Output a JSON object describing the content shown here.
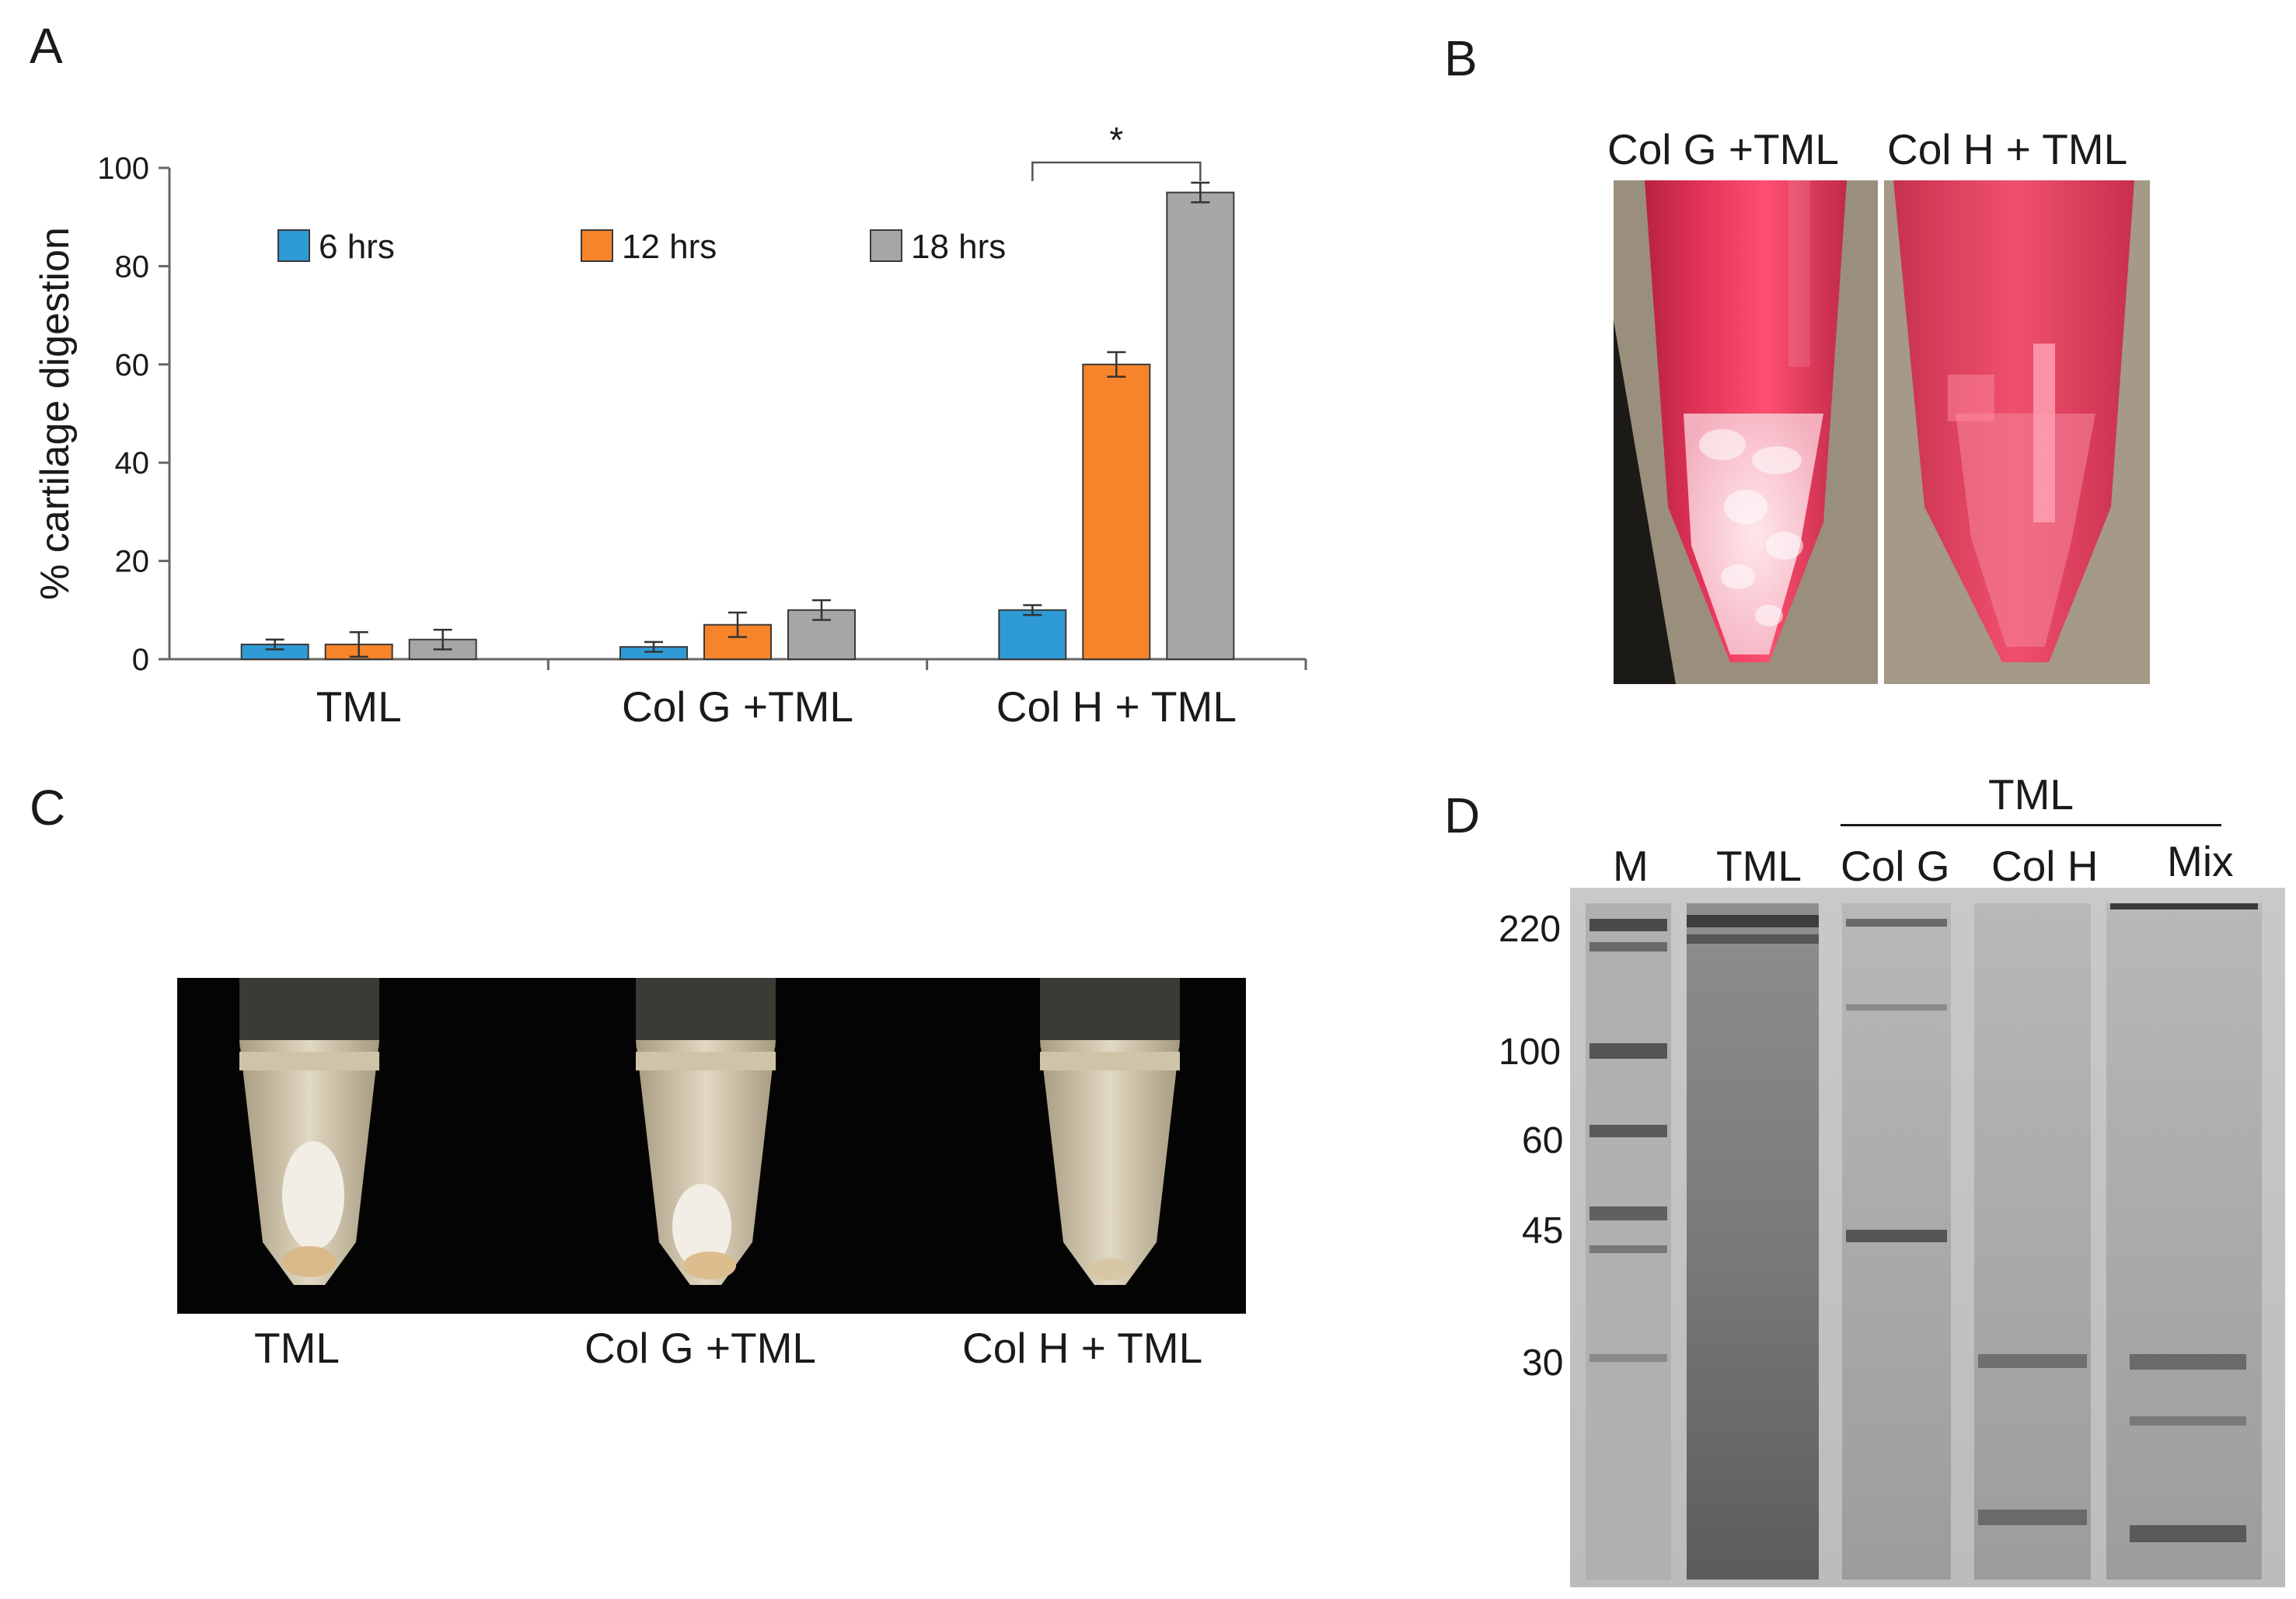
{
  "panels": {
    "A": "A",
    "B": "B",
    "C": "C",
    "D": "D"
  },
  "chart_data": {
    "type": "bar",
    "title": "",
    "xlabel": "",
    "ylabel": "% cartilage digestion",
    "ylim": [
      0,
      100
    ],
    "yticks": [
      0,
      20,
      40,
      60,
      80,
      100
    ],
    "categories": [
      "TML",
      "Col G +TML",
      "Col H + TML"
    ],
    "legend_position": "top",
    "grid": false,
    "series": [
      {
        "name": "6 hrs",
        "color": "#2f9bd6",
        "values": [
          3,
          2.5,
          10
        ],
        "errors": [
          1,
          1,
          1
        ]
      },
      {
        "name": "12 hrs",
        "color": "#f7842a",
        "values": [
          3,
          7,
          60
        ],
        "errors": [
          2.5,
          2.5,
          2.5
        ]
      },
      {
        "name": "18 hrs",
        "color": "#a6a6a6",
        "values": [
          4,
          10,
          95
        ],
        "errors": [
          2,
          2,
          2
        ]
      }
    ],
    "annotations": [
      {
        "text": "*",
        "between": [
          "Col H + TML 6 hrs",
          "Col H + TML 18 hrs"
        ]
      }
    ]
  },
  "panel_b": {
    "labels": [
      "Col G +TML",
      "Col H + TML"
    ]
  },
  "panel_c": {
    "labels": [
      "TML",
      "Col G +TML",
      "Col H + TML"
    ]
  },
  "panel_d": {
    "group_label": "TML",
    "lanes": [
      "M",
      "TML",
      "Col G",
      "Col H",
      "Mix"
    ],
    "markers": [
      "220",
      "100",
      "60",
      "45",
      "30"
    ]
  }
}
